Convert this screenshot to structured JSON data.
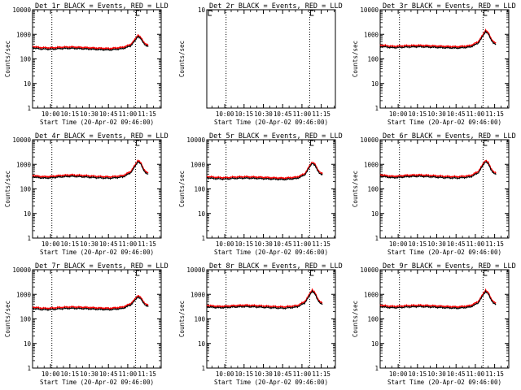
{
  "chart_data": {
    "type": "line",
    "ylabel": "Counts/sec",
    "xlabel": "Start Time (20-Apr-02 09:46:00)",
    "x_tick_labels": [
      "10:00",
      "10:15",
      "10:30",
      "10:45",
      "11:00",
      "11:15"
    ],
    "x_ticks_minutes": [
      14,
      29,
      44,
      59,
      74,
      89
    ],
    "xlim_minutes": [
      0,
      100
    ],
    "y_scale": "log",
    "ylim": [
      1,
      10000
    ],
    "y_tick_labels": [
      "1",
      "10",
      "100",
      "1000",
      "10000"
    ],
    "y_tick_values": [
      1,
      10,
      100,
      1000,
      10000
    ],
    "markers_minutes": [
      15,
      80
    ],
    "series_colors": {
      "events": "#000000",
      "lld": "#ff0000"
    },
    "panels": [
      {
        "title": "Det 1r BLACK = Events, RED = LLD",
        "ymax_label": "10000",
        "has_data": true,
        "profile": [
          [
            0,
            300
          ],
          [
            5,
            270
          ],
          [
            10,
            265
          ],
          [
            15,
            260
          ],
          [
            20,
            275
          ],
          [
            30,
            285
          ],
          [
            40,
            270
          ],
          [
            50,
            255
          ],
          [
            60,
            245
          ],
          [
            70,
            275
          ],
          [
            76,
            350
          ],
          [
            80,
            600
          ],
          [
            82,
            900
          ],
          [
            84,
            700
          ],
          [
            86,
            480
          ],
          [
            88,
            380
          ],
          [
            90,
            330
          ]
        ]
      },
      {
        "title": "Det 2r BLACK = Events, RED = LLD",
        "ymax_label": "10",
        "has_data": false,
        "profile": []
      },
      {
        "title": "Det 3r BLACK = Events, RED = LLD",
        "ymax_label": "10000",
        "has_data": true,
        "profile": [
          [
            0,
            340
          ],
          [
            5,
            320
          ],
          [
            10,
            300
          ],
          [
            15,
            310
          ],
          [
            20,
            320
          ],
          [
            30,
            330
          ],
          [
            40,
            315
          ],
          [
            50,
            300
          ],
          [
            60,
            290
          ],
          [
            70,
            320
          ],
          [
            76,
            450
          ],
          [
            80,
            900
          ],
          [
            82,
            1400
          ],
          [
            84,
            1100
          ],
          [
            86,
            650
          ],
          [
            88,
            480
          ],
          [
            90,
            400
          ]
        ]
      },
      {
        "title": "Det 4r BLACK = Events, RED = LLD",
        "ymax_label": "10000",
        "has_data": true,
        "profile": [
          [
            0,
            330
          ],
          [
            5,
            300
          ],
          [
            10,
            290
          ],
          [
            15,
            300
          ],
          [
            20,
            320
          ],
          [
            30,
            345
          ],
          [
            40,
            325
          ],
          [
            50,
            300
          ],
          [
            60,
            285
          ],
          [
            70,
            320
          ],
          [
            76,
            460
          ],
          [
            80,
            900
          ],
          [
            82,
            1400
          ],
          [
            84,
            1100
          ],
          [
            86,
            650
          ],
          [
            88,
            480
          ],
          [
            90,
            400
          ]
        ]
      },
      {
        "title": "Det 5r BLACK = Events, RED = LLD",
        "ymax_label": "10000",
        "has_data": true,
        "profile": [
          [
            0,
            300
          ],
          [
            5,
            280
          ],
          [
            10,
            270
          ],
          [
            15,
            265
          ],
          [
            20,
            280
          ],
          [
            30,
            290
          ],
          [
            40,
            280
          ],
          [
            50,
            265
          ],
          [
            60,
            255
          ],
          [
            70,
            280
          ],
          [
            76,
            380
          ],
          [
            80,
            800
          ],
          [
            82,
            1200
          ],
          [
            84,
            950
          ],
          [
            86,
            600
          ],
          [
            88,
            450
          ],
          [
            90,
            380
          ]
        ]
      },
      {
        "title": "Det 6r BLACK = Events, RED = LLD",
        "ymax_label": "10000",
        "has_data": true,
        "profile": [
          [
            0,
            350
          ],
          [
            5,
            320
          ],
          [
            10,
            300
          ],
          [
            15,
            310
          ],
          [
            20,
            330
          ],
          [
            30,
            345
          ],
          [
            40,
            325
          ],
          [
            50,
            300
          ],
          [
            60,
            290
          ],
          [
            70,
            320
          ],
          [
            76,
            460
          ],
          [
            80,
            950
          ],
          [
            82,
            1400
          ],
          [
            84,
            1100
          ],
          [
            86,
            650
          ],
          [
            88,
            480
          ],
          [
            90,
            400
          ]
        ]
      },
      {
        "title": "Det 7r BLACK = Events, RED = LLD",
        "ymax_label": "10000",
        "has_data": true,
        "profile": [
          [
            0,
            280
          ],
          [
            5,
            260
          ],
          [
            10,
            250
          ],
          [
            15,
            255
          ],
          [
            20,
            270
          ],
          [
            30,
            285
          ],
          [
            40,
            275
          ],
          [
            50,
            260
          ],
          [
            60,
            250
          ],
          [
            70,
            280
          ],
          [
            76,
            380
          ],
          [
            80,
            620
          ],
          [
            82,
            850
          ],
          [
            84,
            700
          ],
          [
            86,
            480
          ],
          [
            88,
            380
          ],
          [
            90,
            330
          ]
        ]
      },
      {
        "title": "Det 8r BLACK = Events, RED = LLD",
        "ymax_label": "10000",
        "has_data": true,
        "profile": [
          [
            0,
            330
          ],
          [
            5,
            310
          ],
          [
            10,
            300
          ],
          [
            15,
            305
          ],
          [
            20,
            320
          ],
          [
            30,
            335
          ],
          [
            40,
            320
          ],
          [
            50,
            300
          ],
          [
            60,
            285
          ],
          [
            70,
            320
          ],
          [
            76,
            460
          ],
          [
            80,
            950
          ],
          [
            82,
            1450
          ],
          [
            84,
            1100
          ],
          [
            86,
            650
          ],
          [
            88,
            480
          ],
          [
            90,
            400
          ]
        ]
      },
      {
        "title": "Det 9r BLACK = Events, RED = LLD",
        "ymax_label": "10000",
        "has_data": true,
        "profile": [
          [
            0,
            340
          ],
          [
            5,
            310
          ],
          [
            10,
            300
          ],
          [
            15,
            305
          ],
          [
            20,
            320
          ],
          [
            30,
            335
          ],
          [
            40,
            320
          ],
          [
            50,
            300
          ],
          [
            60,
            285
          ],
          [
            70,
            320
          ],
          [
            76,
            460
          ],
          [
            80,
            950
          ],
          [
            82,
            1400
          ],
          [
            84,
            1100
          ],
          [
            86,
            650
          ],
          [
            88,
            480
          ],
          [
            90,
            400
          ]
        ]
      }
    ]
  }
}
